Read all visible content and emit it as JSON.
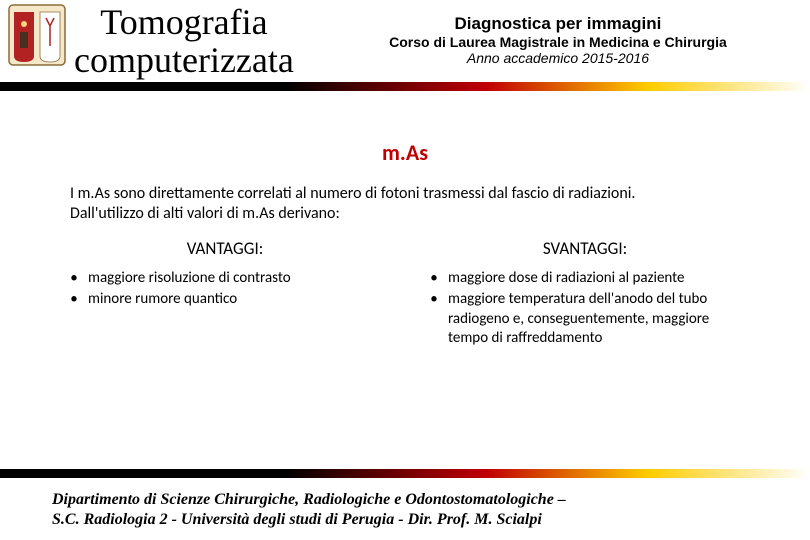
{
  "header": {
    "title_main_line1": "Tomografia",
    "title_main_line2": "computerizzata",
    "subtitle_line1": "Diagnostica per immagini",
    "subtitle_line2": "Corso di Laurea Magistrale in Medicina e Chirurgia",
    "subtitle_line3": "Anno accademico 2015-2016"
  },
  "section_title": "m.As",
  "intro_text": "I m.As sono direttamente correlati al numero di fotoni trasmessi dal fascio di radiazioni.\nDall'utilizzo di alti valori di m.As derivano:",
  "advantages": {
    "heading": "VANTAGGI:",
    "items": [
      "maggiore risoluzione di contrasto",
      "minore rumore quantico"
    ]
  },
  "disadvantages": {
    "heading": "SVANTAGGI:",
    "items": [
      "maggiore dose di radiazioni al paziente",
      "maggiore temperatura dell'anodo del tubo radiogeno e, conseguentemente, maggiore tempo di raffreddamento"
    ]
  },
  "footer_line1": "Dipartimento di Scienze Chirurgiche, Radiologiche  e Odontostomatologiche –",
  "footer_line2": "S.C. Radiologia 2 - Università degli  studi di Perugia -  Dir. Prof. M. Scialpi",
  "colors": {
    "accent_red": "#c00000",
    "stripe_black": "#000000",
    "stripe_red": "#c00000",
    "stripe_yellow": "#ffcc00",
    "background": "#ffffff",
    "text": "#000000"
  },
  "logo": {
    "shield_fill": "#f5e8c8",
    "shield_stroke": "#8a6d3b",
    "left_half": "#b22222",
    "right_half": "#ffffff"
  }
}
